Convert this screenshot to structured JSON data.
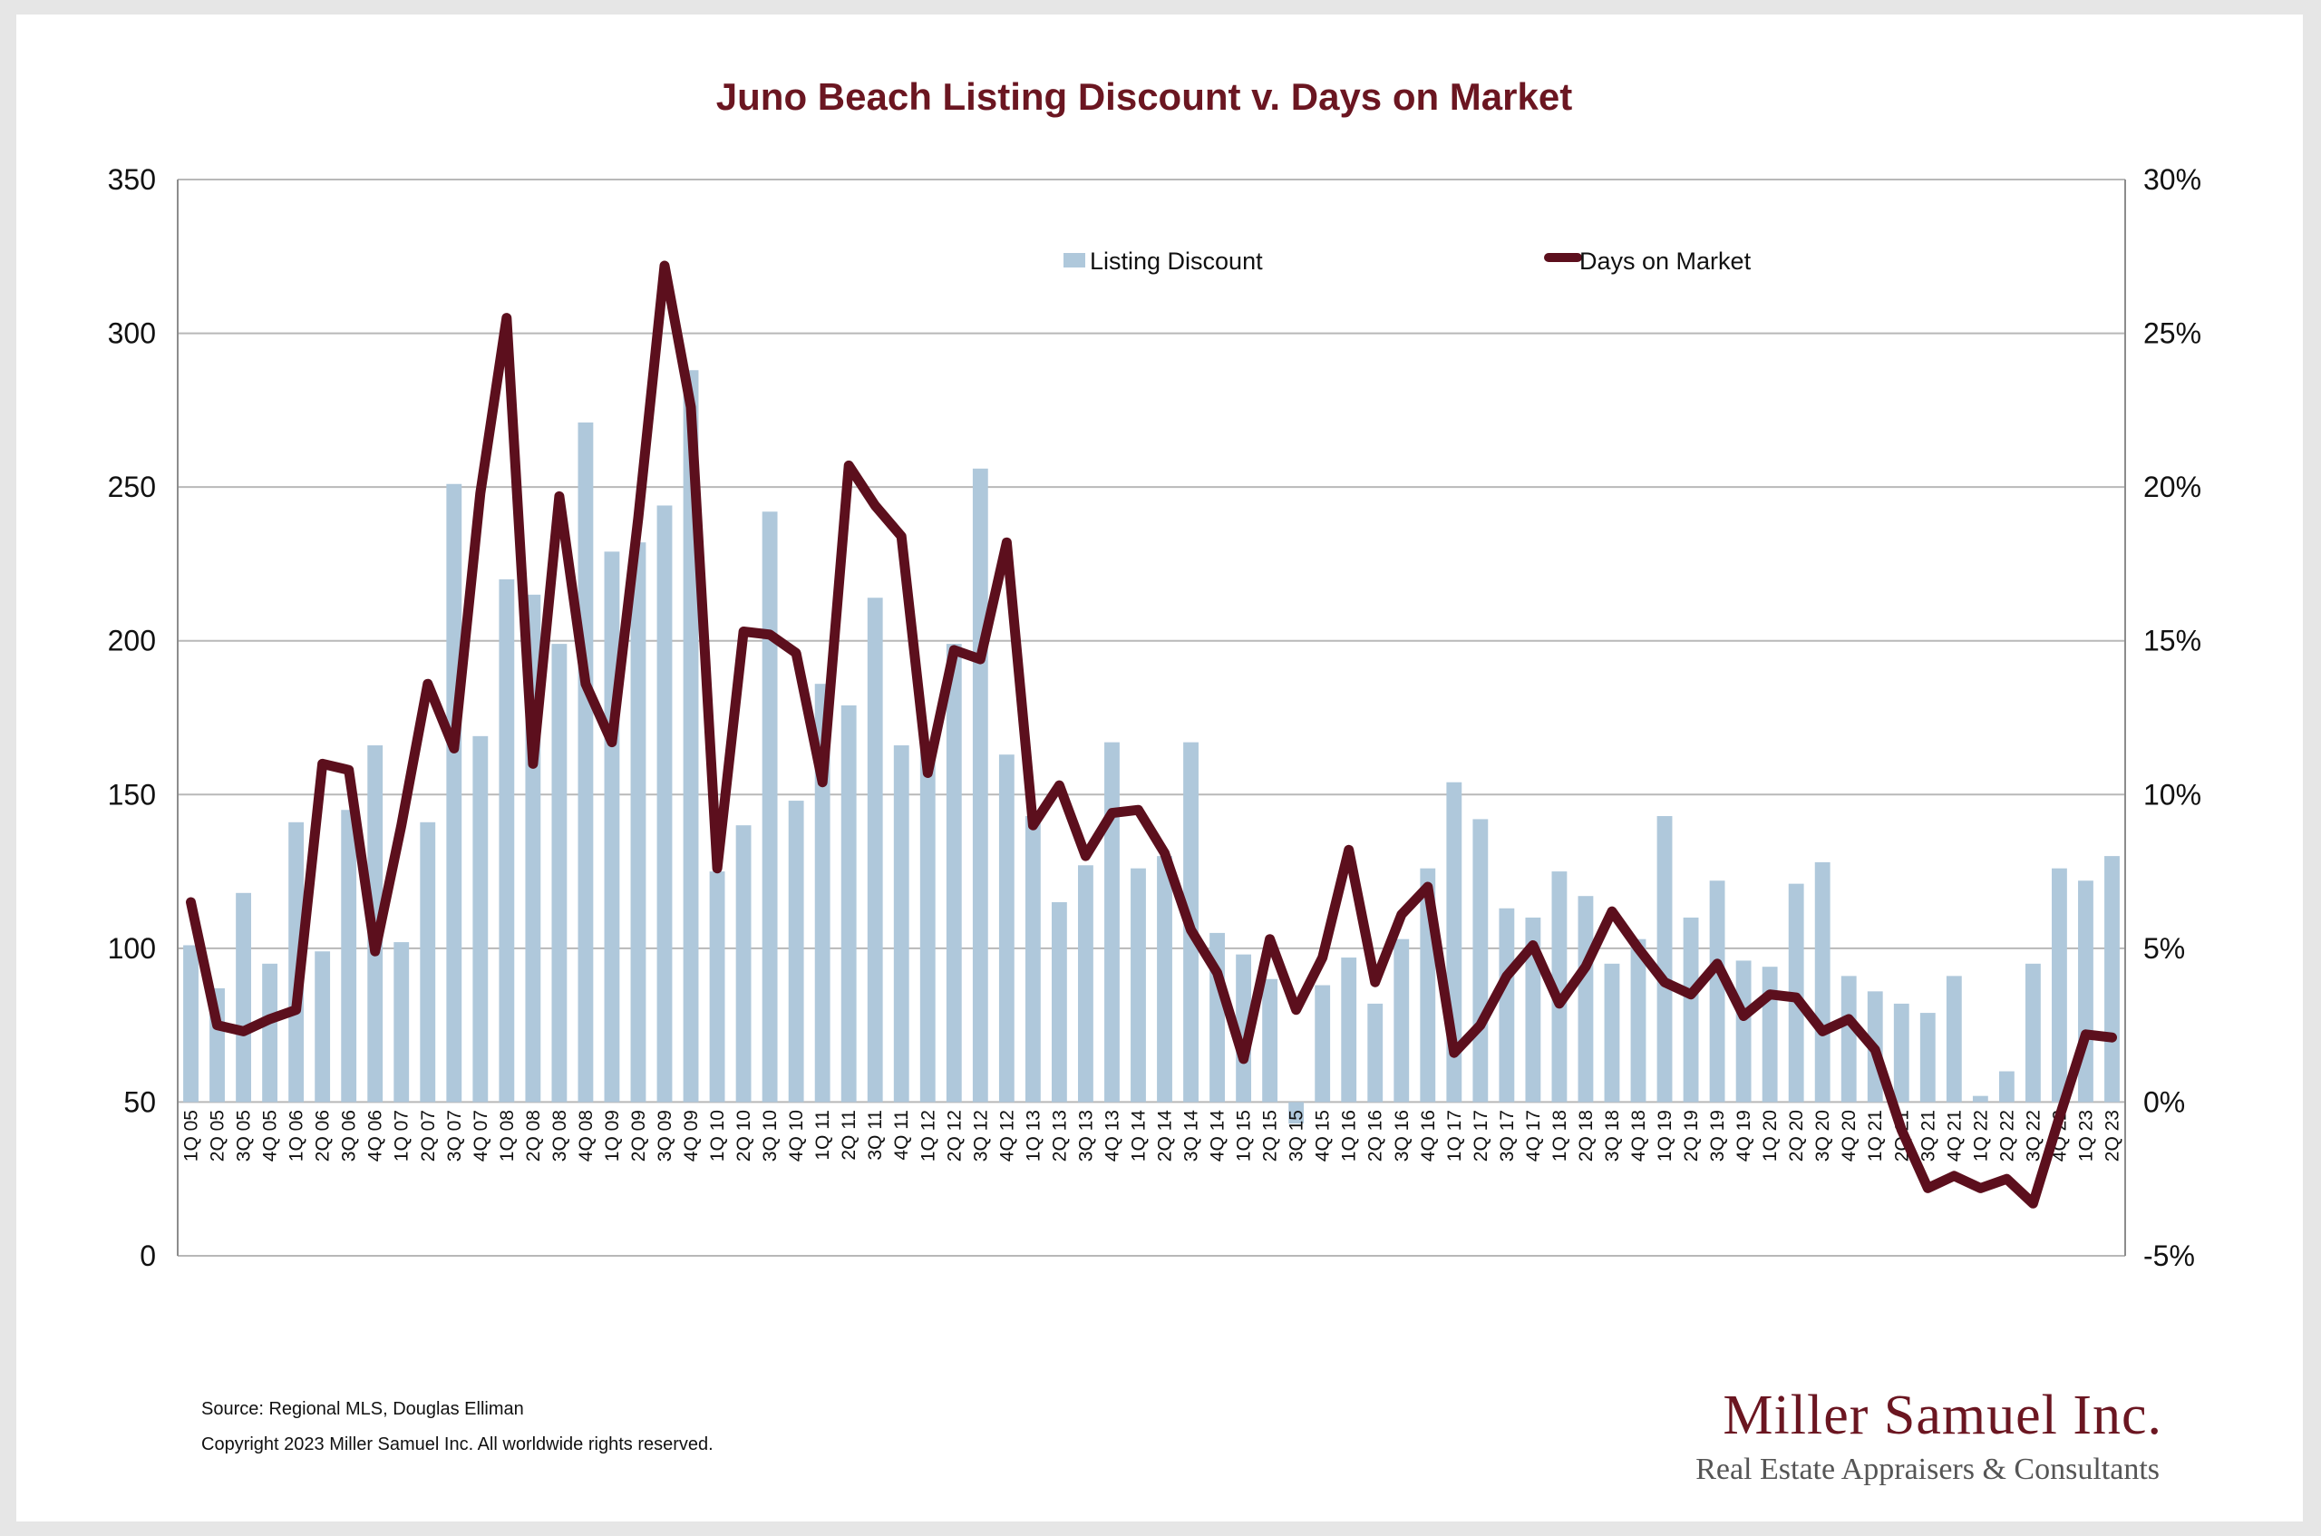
{
  "chart_data": {
    "type": "bar+line",
    "title": "Juno Beach Listing Discount v. Days on Market",
    "categories": [
      "1Q 05",
      "2Q 05",
      "3Q 05",
      "4Q 05",
      "1Q 06",
      "2Q 06",
      "3Q 06",
      "4Q 06",
      "1Q 07",
      "2Q 07",
      "3Q 07",
      "4Q 07",
      "1Q 08",
      "2Q 08",
      "3Q 08",
      "4Q 08",
      "1Q 09",
      "2Q 09",
      "3Q 09",
      "4Q 09",
      "1Q 10",
      "2Q 10",
      "3Q 10",
      "4Q 10",
      "1Q 11",
      "2Q 11",
      "3Q 11",
      "4Q 11",
      "1Q 12",
      "2Q 12",
      "3Q 12",
      "4Q 12",
      "1Q 13",
      "2Q 13",
      "3Q 13",
      "4Q 13",
      "1Q 14",
      "2Q 14",
      "3Q 14",
      "4Q 14",
      "1Q 15",
      "2Q 15",
      "3Q 15",
      "4Q 15",
      "1Q 16",
      "2Q 16",
      "3Q 16",
      "4Q 16",
      "1Q 17",
      "2Q 17",
      "3Q 17",
      "4Q 17",
      "1Q 18",
      "2Q 18",
      "3Q 18",
      "4Q 18",
      "1Q 19",
      "2Q 19",
      "3Q 19",
      "4Q 19",
      "1Q 20",
      "2Q 20",
      "3Q 20",
      "4Q 20",
      "1Q 21",
      "2Q 21",
      "3Q 21",
      "4Q 21",
      "1Q 22",
      "2Q 22",
      "3Q 22",
      "4Q 22",
      "1Q 23",
      "2Q 23"
    ],
    "series": [
      {
        "name": "Listing Discount",
        "type": "bar",
        "axis": "left",
        "color": "#afc8db",
        "values": [
          101,
          87,
          118,
          95,
          141,
          99,
          145,
          166,
          102,
          141,
          251,
          169,
          220,
          215,
          199,
          271,
          229,
          232,
          244,
          288,
          125,
          140,
          242,
          148,
          186,
          179,
          214,
          166,
          164,
          199,
          256,
          163,
          143,
          115,
          127,
          167,
          126,
          130,
          167,
          105,
          98,
          90,
          43,
          88,
          97,
          82,
          103,
          126,
          154,
          142,
          113,
          110,
          125,
          117,
          95,
          103,
          143,
          110,
          122,
          96,
          94,
          121,
          128,
          91,
          86,
          82,
          79,
          91,
          52,
          60,
          95,
          126,
          122,
          130
        ]
      },
      {
        "name": "Days on Market",
        "type": "line",
        "axis": "right",
        "color": "#5c0f1d",
        "values": [
          6.5,
          2.5,
          2.3,
          2.7,
          3.0,
          11.0,
          10.8,
          4.9,
          9.0,
          13.6,
          11.5,
          19.8,
          25.5,
          11.0,
          19.7,
          13.6,
          11.7,
          19.0,
          27.2,
          22.6,
          7.6,
          15.3,
          15.2,
          14.6,
          10.4,
          20.7,
          19.4,
          18.4,
          10.7,
          14.7,
          14.4,
          18.2,
          9.0,
          10.3,
          8.0,
          9.4,
          9.5,
          8.1,
          5.6,
          4.2,
          1.4,
          5.3,
          3.0,
          4.7,
          8.2,
          3.9,
          6.1,
          7.0,
          1.6,
          2.5,
          4.1,
          5.1,
          3.2,
          4.4,
          6.2,
          5.0,
          3.9,
          3.5,
          4.5,
          2.8,
          3.5,
          3.4,
          2.3,
          2.7,
          1.7,
          -0.9,
          -2.8,
          -2.4,
          -2.8,
          -2.5,
          -3.3,
          -0.5,
          2.2,
          2.1
        ]
      }
    ],
    "y_left": {
      "ticks": [
        "0",
        "50",
        "100",
        "150",
        "200",
        "250",
        "300",
        "350"
      ],
      "ylim": [
        0,
        350
      ]
    },
    "y_right": {
      "ticks": [
        "-5%",
        "0%",
        "5%",
        "10%",
        "15%",
        "20%",
        "25%",
        "30%"
      ],
      "ylim": [
        -5,
        30
      ]
    },
    "legend": {
      "placement": "top-center",
      "items": [
        "Listing Discount",
        "Days on Market"
      ]
    },
    "grid": true
  },
  "footer": {
    "source": "Source: Regional MLS, Douglas Elliman",
    "copyright": "Copyright 2023 Miller Samuel Inc. All worldwide rights reserved."
  },
  "brand": {
    "name": "Miller Samuel Inc.",
    "tagline": "Real Estate Appraisers & Consultants",
    "color": "#6b1621"
  }
}
